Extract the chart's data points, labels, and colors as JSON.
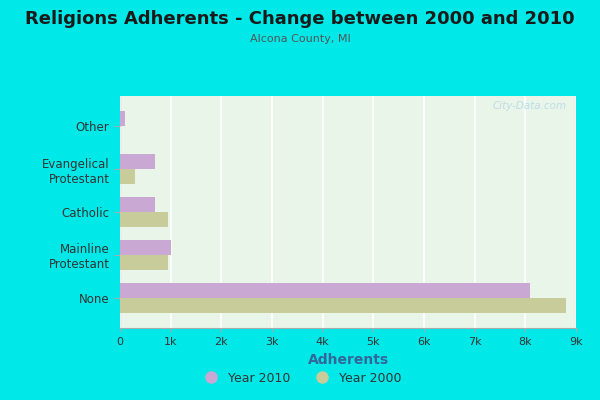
{
  "title": "Religions Adherents - Change between 2000 and 2010",
  "subtitle": "Alcona County, MI",
  "xlabel": "Adherents",
  "categories": [
    "None",
    "Mainline\nProtestant",
    "Catholic",
    "Evangelical\nProtestant",
    "Other"
  ],
  "values_2010": [
    8100,
    1000,
    700,
    700,
    100
  ],
  "values_2000": [
    8800,
    950,
    950,
    300,
    0
  ],
  "color_2010": "#c9a8d4",
  "color_2000": "#c8cc9a",
  "background_outer": "#00e8e8",
  "background_plot_color1": "#e8f5e8",
  "background_plot_color2": "#f5faf5",
  "xlabel_color": "#336699",
  "xlim": [
    0,
    9000
  ],
  "xtick_labels": [
    "0",
    "1k",
    "2k",
    "3k",
    "4k",
    "5k",
    "6k",
    "7k",
    "8k",
    "9k"
  ],
  "xtick_values": [
    0,
    1000,
    2000,
    3000,
    4000,
    5000,
    6000,
    7000,
    8000,
    9000
  ],
  "legend_label_2010": "Year 2010",
  "legend_label_2000": "Year 2000",
  "watermark": "City-Data.com",
  "bar_height": 0.35,
  "grid_color": "#ffffff",
  "title_fontsize": 13,
  "subtitle_fontsize": 8,
  "ylabel_fontsize": 8.5,
  "xlabel_fontsize": 10
}
